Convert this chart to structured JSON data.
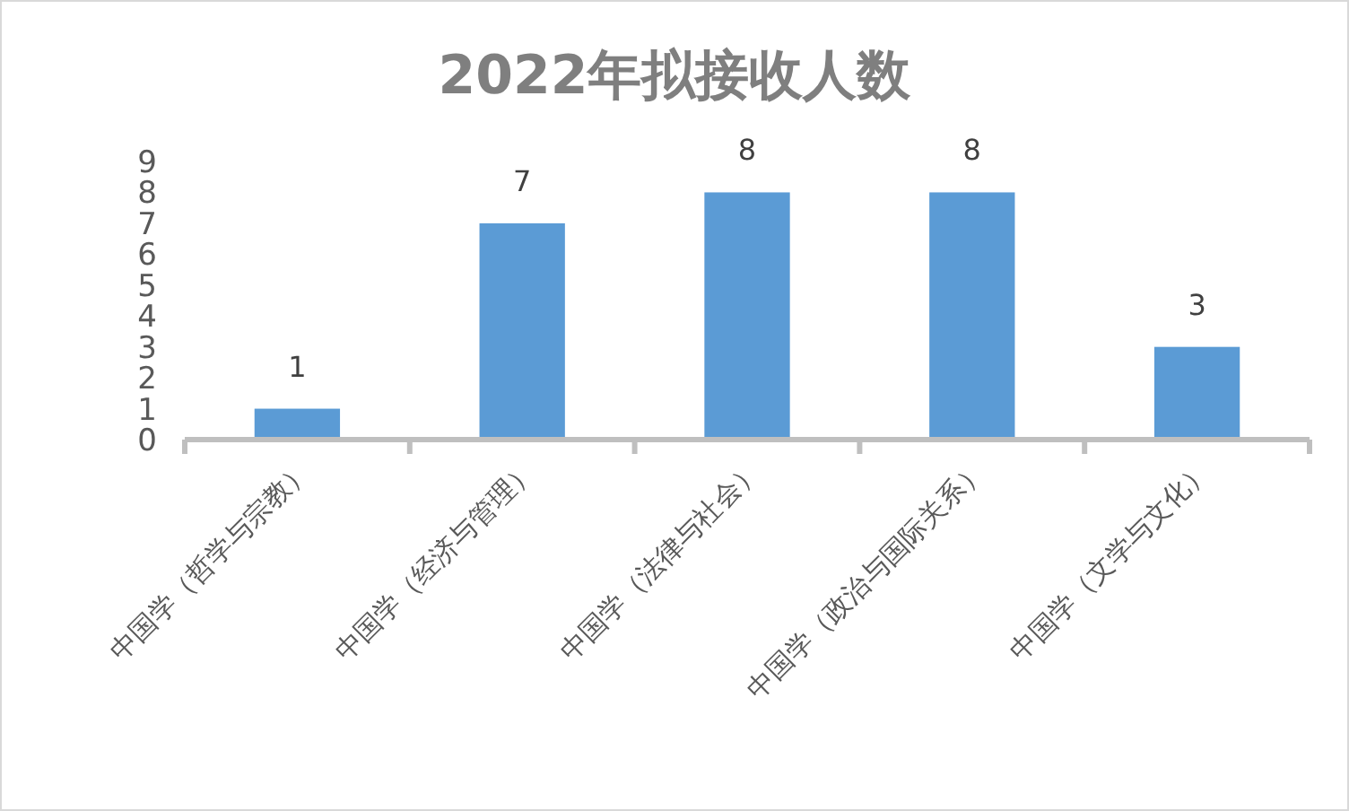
{
  "chart_data": {
    "type": "bar",
    "title": "2022年拟接收人数",
    "categories": [
      "中国学（哲学与宗教）",
      "中国学（经济与管理）",
      "中国学（法律与社会）",
      "中国学（政治与国际关系）",
      "中国学（文学与文化）"
    ],
    "values": [
      1,
      7,
      8,
      8,
      3
    ],
    "color": "#5b9bd5",
    "ylim": [
      0,
      9
    ],
    "yticks": [
      0,
      1,
      2,
      3,
      4,
      5,
      6,
      7,
      8,
      9
    ],
    "data_labels": true,
    "grid": false
  }
}
